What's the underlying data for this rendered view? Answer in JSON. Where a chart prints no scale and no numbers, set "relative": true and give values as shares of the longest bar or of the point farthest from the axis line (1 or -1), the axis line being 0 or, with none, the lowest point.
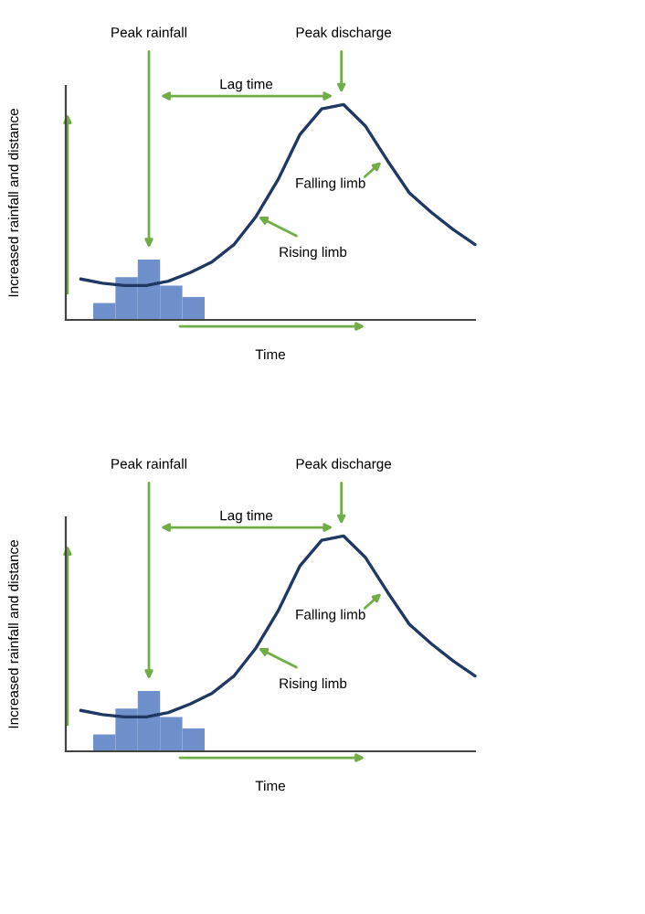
{
  "chart_data": [
    {
      "type": "line",
      "relative": true,
      "xlabel": "Time",
      "ylabel": "Increased rainfall and distance",
      "categories": [
        null,
        null,
        null,
        null,
        null,
        null,
        null,
        null,
        null,
        null,
        null,
        null,
        null,
        null,
        null,
        null,
        null,
        null,
        null
      ],
      "series": [
        {
          "color": "#203864",
          "values": [
            0.19,
            0.17,
            0.16,
            0.16,
            0.18,
            0.22,
            0.27,
            0.35,
            0.48,
            0.65,
            0.86,
            0.98,
            1,
            0.9,
            0.74,
            0.59,
            0.5,
            0.42,
            0.35
          ]
        }
      ],
      "annotations": [
        "Peak rainfall",
        "Peak discharge",
        "Lag time",
        "Rising limb",
        "Falling limb"
      ]
    },
    {
      "type": "bar",
      "relative": true,
      "categories": [
        null,
        null,
        null,
        null,
        null
      ],
      "series": [
        {
          "color": "#7090cc",
          "values": [
            0.28,
            0.71,
            1,
            0.57,
            0.38
          ]
        }
      ]
    },
    {
      "type": "line",
      "relative": true,
      "xlabel": "Time",
      "ylabel": "Increased rainfall and distance",
      "categories": [
        null,
        null,
        null,
        null,
        null,
        null,
        null,
        null,
        null,
        null,
        null,
        null,
        null,
        null,
        null,
        null,
        null,
        null,
        null
      ],
      "series": [
        {
          "color": "#203864",
          "values": [
            0.19,
            0.17,
            0.16,
            0.16,
            0.18,
            0.22,
            0.27,
            0.35,
            0.48,
            0.65,
            0.86,
            0.98,
            1,
            0.9,
            0.74,
            0.59,
            0.5,
            0.42,
            0.35
          ]
        }
      ],
      "annotations": [
        "Peak rainfall",
        "Peak discharge",
        "Lag time",
        "Rising limb",
        "Falling limb"
      ]
    },
    {
      "type": "bar",
      "relative": true,
      "categories": [
        null,
        null,
        null,
        null,
        null
      ],
      "series": [
        {
          "color": "#7090cc",
          "values": [
            0.28,
            0.71,
            1,
            0.57,
            0.38
          ]
        }
      ]
    }
  ]
}
